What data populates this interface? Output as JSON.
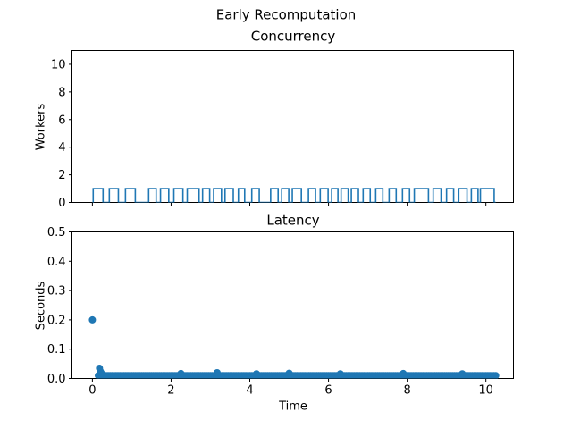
{
  "figure": {
    "suptitle": "Early Recomputation",
    "background": "#ffffff",
    "spine_color": "#000000",
    "text_color": "#000000",
    "accent_color": "#1f77b4"
  },
  "chart_data": [
    {
      "type": "line",
      "style": "step-pulse",
      "title": "Concurrency",
      "xlabel": "",
      "ylabel": "Workers",
      "xlim": [
        -0.52,
        10.7
      ],
      "ylim": [
        0,
        11
      ],
      "xticks": [
        0,
        2,
        4,
        6,
        8,
        10
      ],
      "xtick_labels": [
        "0",
        "2",
        "4",
        "6",
        "8",
        "10"
      ],
      "show_xtick_labels": false,
      "yticks": [
        0,
        2,
        4,
        6,
        8,
        10
      ],
      "ytick_labels": [
        "0",
        "2",
        "4",
        "6",
        "8",
        "10"
      ],
      "line_color": "#1f77b4",
      "baseline_value": 0,
      "pulse_value": 1,
      "line_end": 10.25,
      "busy_intervals": [
        [
          0.02,
          0.27
        ],
        [
          0.43,
          0.66
        ],
        [
          0.84,
          1.09
        ],
        [
          1.43,
          1.62
        ],
        [
          1.73,
          1.94
        ],
        [
          2.07,
          2.3
        ],
        [
          2.41,
          2.71
        ],
        [
          2.8,
          2.98
        ],
        [
          3.08,
          3.28
        ],
        [
          3.37,
          3.58
        ],
        [
          3.71,
          3.87
        ],
        [
          4.05,
          4.24
        ],
        [
          4.53,
          4.72
        ],
        [
          4.81,
          4.99
        ],
        [
          5.08,
          5.31
        ],
        [
          5.49,
          5.67
        ],
        [
          5.79,
          5.99
        ],
        [
          6.08,
          6.24
        ],
        [
          6.32,
          6.5
        ],
        [
          6.58,
          6.76
        ],
        [
          6.88,
          7.06
        ],
        [
          7.2,
          7.38
        ],
        [
          7.54,
          7.72
        ],
        [
          7.88,
          8.06
        ],
        [
          8.18,
          8.54
        ],
        [
          8.66,
          8.86
        ],
        [
          9.0,
          9.18
        ],
        [
          9.31,
          9.52
        ],
        [
          9.63,
          9.8
        ],
        [
          9.86,
          10.21
        ]
      ]
    },
    {
      "type": "scatter",
      "title": "Latency",
      "xlabel": "Time",
      "ylabel": "Seconds",
      "xlim": [
        -0.52,
        10.7
      ],
      "ylim": [
        0,
        0.5
      ],
      "xticks": [
        0,
        2,
        4,
        6,
        8,
        10
      ],
      "xtick_labels": [
        "0",
        "2",
        "4",
        "6",
        "8",
        "10"
      ],
      "show_xtick_labels": true,
      "yticks": [
        0,
        0.1,
        0.2,
        0.3,
        0.4,
        0.5
      ],
      "ytick_labels": [
        "0.0",
        "0.1",
        "0.2",
        "0.3",
        "0.4",
        "0.5"
      ],
      "marker_color": "#1f77b4",
      "outliers": [
        [
          0.0,
          0.2
        ],
        [
          0.18,
          0.035
        ],
        [
          0.2,
          0.025
        ],
        [
          0.23,
          0.018
        ]
      ],
      "band": {
        "x_start": 0.15,
        "x_end": 10.25,
        "step": 0.05,
        "y": 0.01
      },
      "band_bumps": [
        [
          2.25,
          0.017
        ],
        [
          3.17,
          0.02
        ],
        [
          4.17,
          0.016
        ],
        [
          5.0,
          0.018
        ],
        [
          6.3,
          0.016
        ],
        [
          7.9,
          0.017
        ],
        [
          9.4,
          0.016
        ]
      ]
    }
  ]
}
